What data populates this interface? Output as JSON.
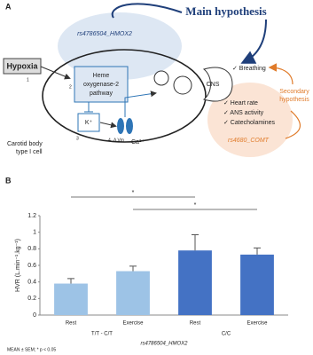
{
  "diagram": {
    "panel_label": "A",
    "main_hypothesis": "Main hypothesis",
    "gene_hmox2": "rs4786504_HMOX2",
    "hypoxia": "Hypoxia",
    "step1": "1",
    "step2": "2",
    "step3": "3",
    "step4": "4",
    "pathway_line1": "Heme",
    "pathway_line2": "oxygenase-2",
    "pathway_line3": "pathway",
    "potassium": "K⁺",
    "delta_vm": "Δ Vm",
    "calcium": "Ca²⁺",
    "cns": "CNS",
    "cell_line1": "Carotid body",
    "cell_line2": "type I cell",
    "breathing": "✓ Breathing",
    "heart_rate": "✓ Heart rate",
    "ans_activity": "✓ ANS activity",
    "catecholamines": "✓ Catecholamines",
    "gene_comt": "rs4680_COMT",
    "secondary_line1": "Secondary",
    "secondary_line2": "hypothesis"
  },
  "panel_b_label": "B",
  "chart_data": {
    "type": "bar",
    "categories": [
      "Rest",
      "Exercise",
      "Rest",
      "Exercise"
    ],
    "groups": [
      "T/T - C/T",
      "C/C"
    ],
    "values": [
      0.38,
      0.53,
      0.78,
      0.73
    ],
    "errors": [
      0.06,
      0.06,
      0.19,
      0.08
    ],
    "colors": [
      "#9dc3e6",
      "#9dc3e6",
      "#4472c4",
      "#4472c4"
    ],
    "y_label": "HVR (L.min⁻¹.kg⁻¹)",
    "x_label": "rs4786504_HMOX2",
    "ylim": [
      0,
      1.2
    ],
    "yticks": [
      0,
      0.2,
      0.4,
      0.6,
      0.8,
      1,
      1.2
    ],
    "significance": [
      "*",
      "*"
    ],
    "footnote": "MEAN ± SEM; * p < 0.05"
  }
}
